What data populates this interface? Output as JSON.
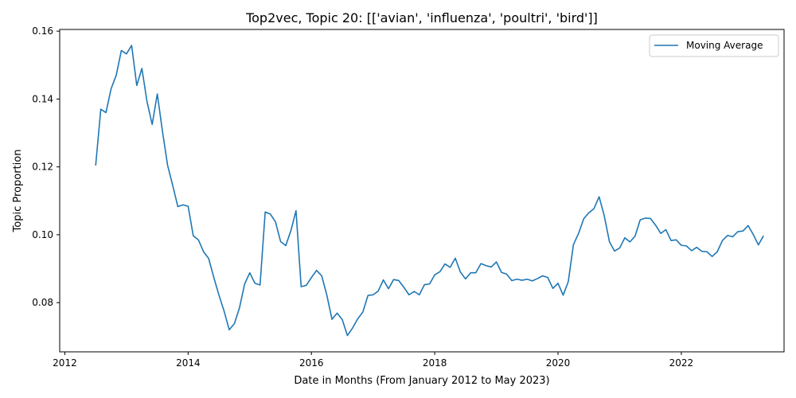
{
  "chart_data": {
    "type": "line",
    "title": "Top2vec, Topic 20: [['avian', 'influenza', 'poultri', 'bird']]",
    "xlabel": "Date in Months (From January 2012 to May 2023)",
    "ylabel": "Topic Proportion",
    "xlim": [
      "2011-12-01",
      "2023-09-01"
    ],
    "ylim": [
      0.0655,
      0.1605
    ],
    "xticks": [
      {
        "label": "2012",
        "date": "2012-01-01"
      },
      {
        "label": "2014",
        "date": "2014-01-01"
      },
      {
        "label": "2016",
        "date": "2016-01-01"
      },
      {
        "label": "2018",
        "date": "2018-01-01"
      },
      {
        "label": "2020",
        "date": "2020-01-01"
      },
      {
        "label": "2022",
        "date": "2022-01-01"
      }
    ],
    "yticks": [
      {
        "label": "0.08",
        "value": 0.08
      },
      {
        "label": "0.10",
        "value": 0.1
      },
      {
        "label": "0.12",
        "value": 0.12
      },
      {
        "label": "0.14",
        "value": 0.14
      },
      {
        "label": "0.16",
        "value": 0.16
      }
    ],
    "grid": false,
    "legend_position": "top-right",
    "series": [
      {
        "name": "Moving Average",
        "color": "#1f77b4",
        "x": [
          "2012-07",
          "2012-08",
          "2012-09",
          "2012-10",
          "2012-11",
          "2012-12",
          "2013-01",
          "2013-02",
          "2013-03",
          "2013-04",
          "2013-05",
          "2013-06",
          "2013-07",
          "2013-08",
          "2013-09",
          "2013-10",
          "2013-11",
          "2013-12",
          "2014-01",
          "2014-02",
          "2014-03",
          "2014-04",
          "2014-05",
          "2014-06",
          "2014-07",
          "2014-08",
          "2014-09",
          "2014-10",
          "2014-11",
          "2014-12",
          "2015-01",
          "2015-02",
          "2015-03",
          "2015-04",
          "2015-05",
          "2015-06",
          "2015-07",
          "2015-08",
          "2015-09",
          "2015-10",
          "2015-11",
          "2015-12",
          "2016-01",
          "2016-02",
          "2016-03",
          "2016-04",
          "2016-05",
          "2016-06",
          "2016-07",
          "2016-08",
          "2016-09",
          "2016-10",
          "2016-11",
          "2016-12",
          "2017-01",
          "2017-02",
          "2017-03",
          "2017-04",
          "2017-05",
          "2017-06",
          "2017-07",
          "2017-08",
          "2017-09",
          "2017-10",
          "2017-11",
          "2017-12",
          "2018-01",
          "2018-02",
          "2018-03",
          "2018-04",
          "2018-05",
          "2018-06",
          "2018-07",
          "2018-08",
          "2018-09",
          "2018-10",
          "2018-11",
          "2018-12",
          "2019-01",
          "2019-02",
          "2019-03",
          "2019-04",
          "2019-05",
          "2019-06",
          "2019-07",
          "2019-08",
          "2019-09",
          "2019-10",
          "2019-11",
          "2019-12",
          "2020-01",
          "2020-02",
          "2020-03",
          "2020-04",
          "2020-05",
          "2020-06",
          "2020-07",
          "2020-08",
          "2020-09",
          "2020-10",
          "2020-11",
          "2020-12",
          "2021-01",
          "2021-02",
          "2021-03",
          "2021-04",
          "2021-05",
          "2021-06",
          "2021-07",
          "2021-08",
          "2021-09",
          "2021-10",
          "2021-11",
          "2021-12",
          "2022-01",
          "2022-02",
          "2022-03",
          "2022-04",
          "2022-05",
          "2022-06",
          "2022-07",
          "2022-08",
          "2022-09",
          "2022-10",
          "2022-11",
          "2022-12",
          "2023-01",
          "2023-02",
          "2023-03",
          "2023-04",
          "2023-05"
        ],
        "y": [
          0.1204,
          0.137,
          0.136,
          0.143,
          0.147,
          0.1543,
          0.1533,
          0.1558,
          0.144,
          0.149,
          0.1392,
          0.1325,
          0.1415,
          0.1305,
          0.1205,
          0.1145,
          0.1083,
          0.1088,
          0.1084,
          0.0997,
          0.0985,
          0.095,
          0.093,
          0.0874,
          0.0822,
          0.0775,
          0.072,
          0.0738,
          0.0785,
          0.0855,
          0.0888,
          0.0857,
          0.0852,
          0.1067,
          0.1061,
          0.1038,
          0.098,
          0.0968,
          0.1012,
          0.1071,
          0.0847,
          0.0851,
          0.0874,
          0.0895,
          0.0879,
          0.0822,
          0.0751,
          0.0769,
          0.075,
          0.0703,
          0.0725,
          0.0752,
          0.0772,
          0.0821,
          0.0823,
          0.0834,
          0.0867,
          0.0841,
          0.0868,
          0.0865,
          0.0845,
          0.0823,
          0.0833,
          0.0823,
          0.0853,
          0.0855,
          0.0882,
          0.0891,
          0.0914,
          0.0904,
          0.0931,
          0.089,
          0.087,
          0.0888,
          0.0888,
          0.0915,
          0.0909,
          0.0905,
          0.092,
          0.0889,
          0.0884,
          0.0865,
          0.0869,
          0.0866,
          0.0869,
          0.0864,
          0.0871,
          0.0879,
          0.0874,
          0.0842,
          0.0857,
          0.0822,
          0.0862,
          0.0971,
          0.1004,
          0.1047,
          0.1065,
          0.1077,
          0.1112,
          0.1056,
          0.098,
          0.0952,
          0.0961,
          0.0991,
          0.0979,
          0.0996,
          0.1044,
          0.1049,
          0.1048,
          0.1028,
          0.1004,
          0.1015,
          0.0983,
          0.0985,
          0.0969,
          0.0967,
          0.0953,
          0.0963,
          0.0951,
          0.095,
          0.0936,
          0.095,
          0.0983,
          0.0998,
          0.0994,
          0.1009,
          0.1011,
          0.1027,
          0.1001,
          0.097,
          0.0997
        ]
      }
    ]
  }
}
